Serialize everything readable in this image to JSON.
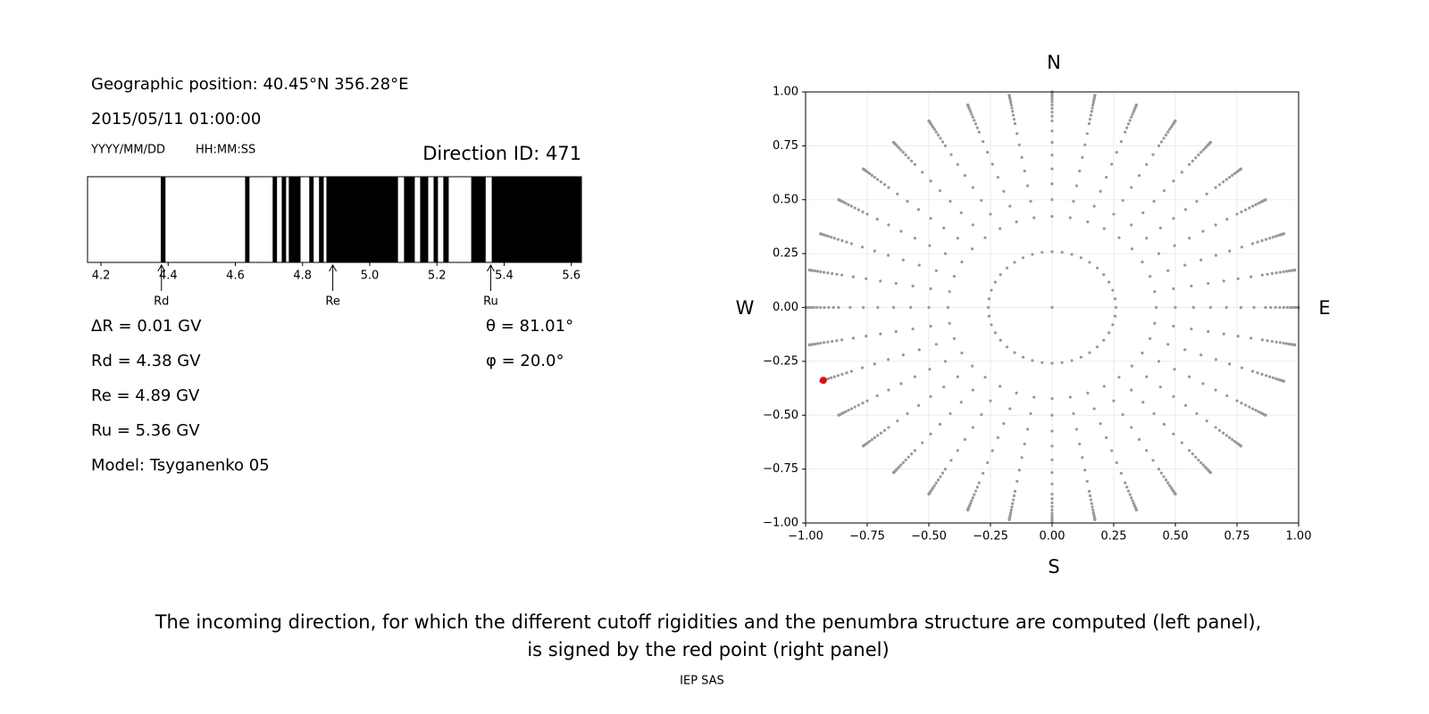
{
  "left_panel": {
    "position": "Geographic position: 40.45°N 356.28°E",
    "datetime": "2015/05/11 01:00:00",
    "date_format": "YYYY/MM/DD",
    "time_format": "HH:MM:SS",
    "direction": "Direction ID: 471",
    "penumbra": {
      "type": "penumbra",
      "xlim": [
        4.16,
        5.63
      ],
      "xticks": [
        4.2,
        4.4,
        4.6,
        4.8,
        {
          "value": 5,
          "label": "5.0"
        },
        5.2,
        5.4,
        5.6
      ],
      "color": "#000000",
      "bands": [
        [
          4.378,
          4.392
        ],
        [
          4.629,
          4.642
        ],
        [
          4.711,
          4.724
        ],
        [
          4.738,
          4.751
        ],
        [
          4.759,
          4.794
        ],
        [
          4.82,
          4.833
        ],
        [
          4.849,
          4.863
        ],
        [
          4.871,
          5.084
        ],
        [
          5.102,
          5.134
        ],
        [
          5.15,
          5.174
        ],
        [
          5.19,
          5.203
        ],
        [
          5.219,
          5.235
        ],
        [
          5.302,
          5.345
        ],
        [
          5.363,
          5.63
        ]
      ],
      "markers": [
        {
          "label": "Rd",
          "value": 4.38
        },
        {
          "label": "Re",
          "value": 4.89
        },
        {
          "label": "Ru",
          "value": 5.36
        }
      ]
    },
    "parameters": [
      "ΔR = 0.01 GV",
      "Rd = 4.38 GV",
      "Re = 4.89 GV",
      "Ru = 5.36 GV",
      "Model: Tsyganenko 05"
    ],
    "angles": [
      "θ = 81.01°",
      "φ = 20.0°"
    ]
  },
  "chart_data": {
    "type": "scatter",
    "xlim": [
      -1,
      1
    ],
    "ylim": [
      -1,
      1
    ],
    "xticks": [
      {
        "value": -1,
        "label": "−1.00"
      },
      {
        "value": -0.75,
        "label": "−0.75"
      },
      {
        "value": -0.5,
        "label": "−0.50"
      },
      {
        "value": -0.25,
        "label": "−0.25"
      },
      {
        "value": 0,
        "label": "0.00"
      },
      {
        "value": 0.25,
        "label": "0.25"
      },
      {
        "value": 0.5,
        "label": "0.50"
      },
      {
        "value": 0.75,
        "label": "0.75"
      },
      {
        "value": 1,
        "label": "1.00"
      }
    ],
    "yticks": [
      {
        "value": -1,
        "label": "−1.00"
      },
      {
        "value": -0.75,
        "label": "−0.75"
      },
      {
        "value": -0.5,
        "label": "−0.50"
      },
      {
        "value": -0.25,
        "label": "−0.25"
      },
      {
        "value": 0,
        "label": "0.00"
      },
      {
        "value": 0.25,
        "label": "0.25"
      },
      {
        "value": 0.5,
        "label": "0.50"
      },
      {
        "value": 0.75,
        "label": "0.75"
      },
      {
        "value": 1,
        "label": "1.00"
      }
    ],
    "grid": true,
    "x": [
      -0.928
    ],
    "y": [
      -0.338
    ],
    "color": "#dd1111",
    "compass": {
      "north": "N",
      "south": "S",
      "east": "E",
      "west": "W"
    }
  },
  "caption": [
    "The incoming direction, for which the different cutoff rigidities and the penumbra structure are computed (left panel),",
    "is signed by the red point (right panel)"
  ],
  "footer": "IEP SAS"
}
